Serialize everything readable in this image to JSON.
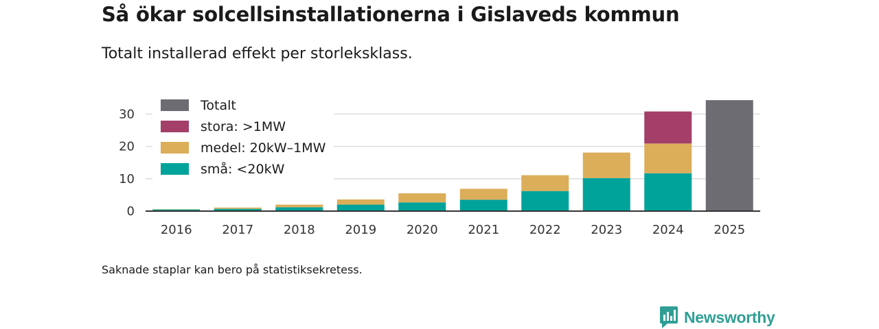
{
  "header": {
    "title": "Så ökar solcellsinstallationerna i Gislaveds kommun",
    "subtitle": "Totalt installerad effekt per storleksklass."
  },
  "footer": {
    "note": "Saknade staplar kan bero på statistiksekretess.",
    "brand": "Newsworthy"
  },
  "colors": {
    "small": "#00a39a",
    "medium": "#dcae5a",
    "large": "#a33f69",
    "total": "#6d6c72",
    "grid": "#dddddd",
    "axis": "#333333",
    "brand": "#2f9f95"
  },
  "chart_data": {
    "type": "bar",
    "stacked": true,
    "title": "Så ökar solcellsinstallationerna i Gislaveds kommun",
    "subtitle": "Totalt installerad effekt per storleksklass.",
    "xlabel": "",
    "ylabel": "",
    "ylim": [
      0,
      36
    ],
    "yticks": [
      0,
      10,
      20,
      30
    ],
    "grid": true,
    "legend_position": "top-left",
    "categories": [
      "2016",
      "2017",
      "2018",
      "2019",
      "2020",
      "2021",
      "2022",
      "2023",
      "2024",
      "2025"
    ],
    "series": [
      {
        "name": "små: <20kW",
        "color_key": "small",
        "values": [
          0.5,
          0.7,
          1.2,
          2.0,
          2.7,
          3.5,
          6.2,
          10.2,
          11.7,
          null
        ]
      },
      {
        "name": "medel: 20kW–1MW",
        "color_key": "medium",
        "values": [
          0.1,
          0.4,
          0.8,
          1.6,
          2.8,
          3.4,
          4.9,
          7.9,
          9.2,
          null
        ]
      },
      {
        "name": "stora: >1MW",
        "color_key": "large",
        "values": [
          null,
          null,
          null,
          null,
          null,
          null,
          null,
          null,
          9.9,
          null
        ]
      },
      {
        "name": "Totalt",
        "color_key": "total",
        "values": [
          null,
          null,
          null,
          null,
          null,
          null,
          null,
          null,
          null,
          34.3
        ]
      }
    ],
    "legend_order": [
      "Totalt",
      "stora: >1MW",
      "medel: 20kW–1MW",
      "små: <20kW"
    ]
  }
}
